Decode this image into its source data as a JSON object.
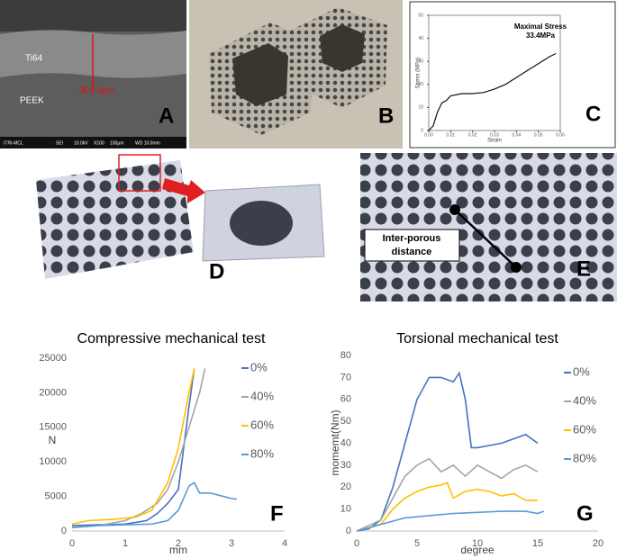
{
  "panels": {
    "a": {
      "letter": "A",
      "layer_top": "Ti64",
      "layer_bottom": "PEEK",
      "thickness": "301.9μm",
      "info_bar": [
        "ITRI-MCL",
        "SEI",
        "10.0kV",
        "X100",
        "100μm",
        "WD 10.0mm"
      ]
    },
    "b": {
      "letter": "B"
    },
    "d": {
      "letter": "D"
    },
    "e": {
      "letter": "E",
      "callout": [
        "Inter-porous",
        "distance"
      ]
    },
    "c": {
      "letter": "C"
    },
    "f": {
      "letter": "F"
    },
    "g": {
      "letter": "G"
    }
  },
  "chart_data": [
    {
      "type": "line",
      "annotation": [
        "Maximal Stress",
        "33.4MPa"
      ],
      "xlabel": "Strain",
      "ylabel": "Stress (MPa)",
      "xlim": [
        0,
        0.06
      ],
      "xticks": [
        {
          "value": 0,
          "label": "0.00"
        },
        {
          "value": 0.01,
          "label": "0.01"
        },
        {
          "value": 0.02,
          "label": "0.02"
        },
        {
          "value": 0.03,
          "label": "0.03"
        },
        {
          "value": 0.04,
          "label": "0.04"
        },
        {
          "value": 0.05,
          "label": "0.05"
        },
        {
          "value": 0.06,
          "label": "0.06"
        }
      ],
      "ylim": [
        0,
        50
      ],
      "yticks": [
        0,
        10,
        20,
        30,
        40,
        50
      ],
      "series": [
        {
          "color": "#111111",
          "x": [
            0,
            0.002,
            0.004,
            0.006,
            0.008,
            0.01,
            0.015,
            0.02,
            0.025,
            0.03,
            0.035,
            0.04,
            0.045,
            0.05,
            0.055,
            0.058
          ],
          "values": [
            0,
            2,
            8,
            12,
            13,
            15,
            16,
            16,
            16.5,
            18,
            20,
            23,
            26,
            29,
            32,
            33.4
          ]
        }
      ]
    },
    {
      "type": "line",
      "title": "Compressive mechanical test",
      "xlabel": "mm",
      "ylabel": "N",
      "legend": true,
      "xlim": [
        0,
        4
      ],
      "xticks": [
        0,
        1,
        2,
        3,
        4
      ],
      "ylim": [
        0,
        25000
      ],
      "yticks": [
        0,
        5000,
        10000,
        15000,
        20000,
        25000
      ],
      "series": [
        {
          "name": "0%",
          "color": "#4472c4",
          "x": [
            0,
            0.5,
            1,
            1.4,
            1.6,
            1.8,
            2,
            2.1,
            2.2,
            2.3
          ],
          "values": [
            800,
            900,
            1000,
            1500,
            2500,
            4000,
            6000,
            12000,
            18000,
            23500
          ]
        },
        {
          "name": "40%",
          "color": "#a5a5a5",
          "x": [
            0,
            0.5,
            1,
            1.3,
            1.6,
            1.8,
            2,
            2.2,
            2.4,
            2.5
          ],
          "values": [
            500,
            800,
            1500,
            2500,
            4000,
            6000,
            10000,
            15000,
            20000,
            23500
          ]
        },
        {
          "name": "60%",
          "color": "#ffc000",
          "x": [
            0,
            0.3,
            0.8,
            1.2,
            1.5,
            1.8,
            2,
            2.1,
            2.2,
            2.3
          ],
          "values": [
            1000,
            1500,
            1700,
            2000,
            3000,
            7000,
            12000,
            16000,
            20000,
            23500
          ]
        },
        {
          "name": "80%",
          "color": "#5b9bd5",
          "x": [
            0,
            0.5,
            1,
            1.5,
            1.8,
            2,
            2.2,
            2.3,
            2.4,
            2.6,
            3,
            3.1
          ],
          "values": [
            500,
            800,
            900,
            1000,
            1500,
            3000,
            6500,
            7000,
            5500,
            5500,
            4700,
            4600
          ]
        }
      ]
    },
    {
      "type": "line",
      "title": "Torsional mechanical test",
      "xlabel": "degree",
      "ylabel": "momemt(Nm)",
      "legend": true,
      "xlim": [
        0,
        20
      ],
      "xticks": [
        0,
        5,
        10,
        15,
        20
      ],
      "ylim": [
        0,
        80
      ],
      "yticks": [
        0,
        10,
        20,
        30,
        40,
        50,
        60,
        70,
        80
      ],
      "series": [
        {
          "name": "0%",
          "color": "#4472c4",
          "x": [
            0,
            1,
            2,
            3,
            4,
            5,
            5.5,
            6,
            7,
            8,
            8.5,
            9,
            9.5,
            10,
            12,
            14,
            15
          ],
          "values": [
            0,
            1,
            5,
            20,
            40,
            60,
            65,
            70,
            70,
            68,
            72,
            60,
            38,
            38,
            40,
            44,
            40
          ]
        },
        {
          "name": "40%",
          "color": "#a5a5a5",
          "x": [
            0,
            2,
            3,
            4,
            5,
            6,
            7,
            8,
            9,
            10,
            11,
            12,
            13,
            14,
            15
          ],
          "values": [
            0,
            5,
            15,
            25,
            30,
            33,
            27,
            30,
            25,
            30,
            27,
            24,
            28,
            30,
            27
          ]
        },
        {
          "name": "60%",
          "color": "#ffc000",
          "x": [
            0,
            2,
            3,
            4,
            5,
            6,
            7,
            7.5,
            8,
            9,
            10,
            11,
            12,
            13,
            14,
            15
          ],
          "values": [
            0,
            3,
            10,
            15,
            18,
            20,
            21,
            22,
            15,
            18,
            19,
            18,
            16,
            17,
            14,
            14
          ]
        },
        {
          "name": "80%",
          "color": "#5b9bd5",
          "x": [
            0,
            2,
            4,
            6,
            8,
            10,
            12,
            14,
            15,
            15.5
          ],
          "values": [
            0,
            3,
            6,
            7,
            8,
            8.5,
            9,
            9,
            8,
            9
          ]
        }
      ]
    }
  ]
}
